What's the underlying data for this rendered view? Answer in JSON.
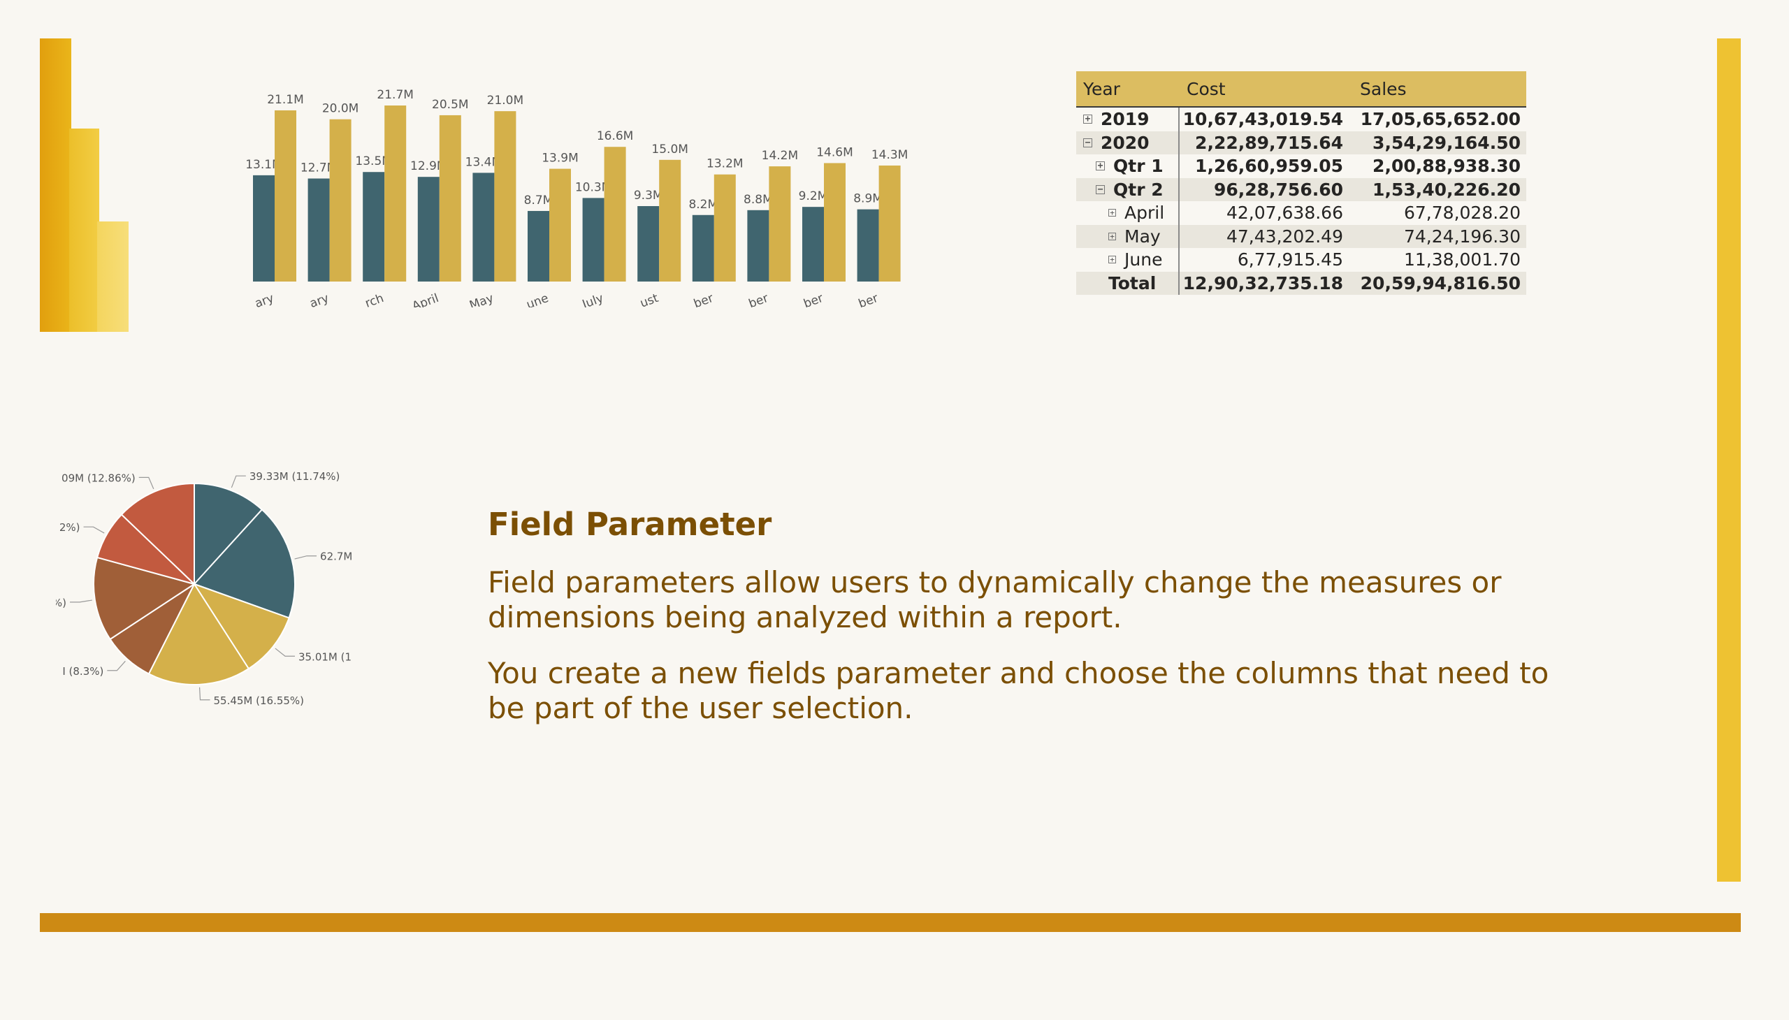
{
  "slide": {
    "title": "Field Parameter",
    "paragraphs": [
      "Field parameters allow users to dynamically change the measures or dimensions being analyzed within a report.",
      "You create a new fields parameter and choose the columns that need to be part of the user selection."
    ]
  },
  "colors": {
    "background": "#f9f7f2",
    "accent_gold": "#d4b04a",
    "accent_teal": "#40656f",
    "title_text": "#7b4f04",
    "bottom_bar": "#cd8a14",
    "right_bar": "#eec232"
  },
  "logo": {
    "icon": "power-bi-logo-icon"
  },
  "matrix": {
    "headers": [
      "Year",
      "Cost",
      "Sales"
    ],
    "rows": [
      {
        "label": "2019",
        "cost": "10,67,43,019.54",
        "sales": "17,05,65,652.00",
        "toggle": "⊞",
        "bold": true,
        "level": 0
      },
      {
        "label": "2020",
        "cost": "2,22,89,715.64",
        "sales": "3,54,29,164.50",
        "toggle": "⊟",
        "bold": true,
        "level": 0
      },
      {
        "label": "Qtr 1",
        "cost": "1,26,60,959.05",
        "sales": "2,00,88,938.30",
        "toggle": "⊞",
        "bold": true,
        "level": 1
      },
      {
        "label": "Qtr 2",
        "cost": "96,28,756.60",
        "sales": "1,53,40,226.20",
        "toggle": "⊟",
        "bold": true,
        "level": 1
      },
      {
        "label": "April",
        "cost": "42,07,638.66",
        "sales": "67,78,028.20",
        "toggle": "⊞",
        "bold": false,
        "level": 2
      },
      {
        "label": "May",
        "cost": "47,43,202.49",
        "sales": "74,24,196.30",
        "toggle": "⊞",
        "bold": false,
        "level": 2
      },
      {
        "label": "June",
        "cost": "6,77,915.45",
        "sales": "11,38,001.70",
        "toggle": "⊞",
        "bold": false,
        "level": 2
      },
      {
        "label": "Total",
        "cost": "12,90,32,735.18",
        "sales": "20,59,94,816.50",
        "toggle": "",
        "bold": true,
        "level": 0
      }
    ]
  },
  "chart_data": [
    {
      "type": "bar",
      "categories": [
        "ary",
        "ary",
        "rch",
        "April",
        "May",
        "une",
        "July",
        "ust",
        "ber",
        "ber",
        "ber",
        "ber"
      ],
      "series": [
        {
          "values": [
            13.1,
            12.7,
            13.5,
            12.9,
            13.4,
            8.7,
            10.3,
            9.3,
            8.2,
            8.8,
            9.2,
            8.9
          ],
          "labels": [
            "13.1M",
            "12.7M",
            "13.5M",
            "12.9M",
            "13.4M",
            "8.7M",
            "10.3M",
            "9.3M",
            "8.2M",
            "8.8M",
            "9.2M",
            "8.9M"
          ],
          "color": "#40656f"
        },
        {
          "values": [
            21.1,
            20.0,
            21.7,
            20.5,
            21.0,
            13.9,
            16.6,
            15.0,
            13.2,
            14.2,
            14.6,
            14.3
          ],
          "labels": [
            "21.1M",
            "20.0M",
            "21.7M",
            "20.5M",
            "21.0M",
            "13.9M",
            "16.6M",
            "15.0M",
            "13.2M",
            "14.2M",
            "14.6M",
            "14.3M"
          ],
          "color": "#d4b04a"
        }
      ],
      "grid": false
    },
    {
      "type": "pie",
      "slices": [
        {
          "value": 11.74,
          "label": "39.33M (11.74%)",
          "color": "#40656f"
        },
        {
          "value": 18.72,
          "label": "62.7M",
          "color": "#40656f"
        },
        {
          "value": 10.45,
          "label": "35.01M (1",
          "color": "#d4b04a"
        },
        {
          "value": 16.55,
          "label": "55.45M (16.55%)",
          "color": "#d4b04a"
        },
        {
          "value": 8.3,
          "label": "I (8.3%)",
          "color": "#a05f38"
        },
        {
          "value": 13.5,
          "label": "%)",
          "color": "#a05f38"
        },
        {
          "value": 7.88,
          "label": "2%)",
          "color": "#c25a3f"
        },
        {
          "value": 12.86,
          "label": "09M (12.86%)",
          "color": "#c25a3f"
        }
      ]
    }
  ]
}
